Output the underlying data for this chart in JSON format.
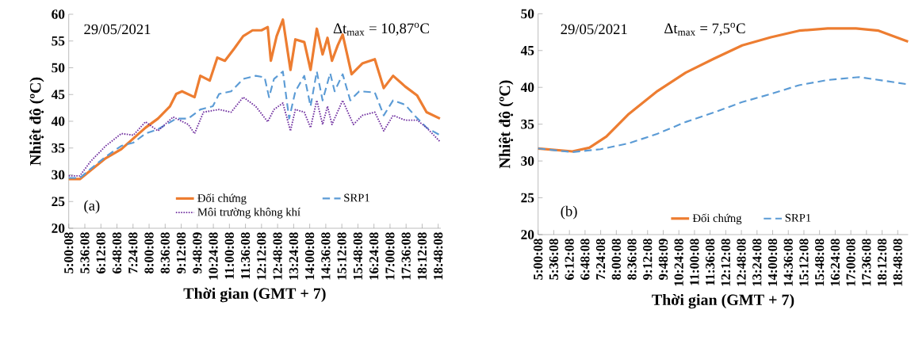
{
  "chart_data": [
    {
      "type": "line",
      "xlabel": "Thời gian (GMT + 7)",
      "ylabel": "Nhiệt độ (ºC)",
      "annotations": [
        "29/05/2021",
        "Δt$_{max}$ = 10,87$^{o}$C",
        "(a)"
      ],
      "xlim": [
        "2021-05-29T05:00",
        "2021-05-29T18:54"
      ],
      "ylim": [
        20,
        60
      ],
      "yticks": [
        20,
        25,
        30,
        35,
        40,
        45,
        50,
        55,
        60
      ],
      "xticks": [
        {
          "value": "2021-05-29T05:00:08",
          "label": "5:00:08"
        },
        {
          "value": "2021-05-29T05:36:08",
          "label": "5:36:08"
        },
        {
          "value": "2021-05-29T06:12:08",
          "label": "6:12:08"
        },
        {
          "value": "2021-05-29T06:48:08",
          "label": "6:48:08"
        },
        {
          "value": "2021-05-29T07:24:08",
          "label": "7:24:08"
        },
        {
          "value": "2021-05-29T08:00:08",
          "label": "8:00:08"
        },
        {
          "value": "2021-05-29T08:36:08",
          "label": "8:36:08"
        },
        {
          "value": "2021-05-29T09:12:08",
          "label": "9:12:08"
        },
        {
          "value": "2021-05-29T09:48:09",
          "label": "9:48:09"
        },
        {
          "value": "2021-05-29T10:24:08",
          "label": "10:24:08"
        },
        {
          "value": "2021-05-29T11:00:08",
          "label": "11:00:08"
        },
        {
          "value": "2021-05-29T11:36:08",
          "label": "11:36:08"
        },
        {
          "value": "2021-05-29T12:12:08",
          "label": "12:12:08"
        },
        {
          "value": "2021-05-29T12:48:08",
          "label": "12:48:08"
        },
        {
          "value": "2021-05-29T13:24:08",
          "label": "13:24:08"
        },
        {
          "value": "2021-05-29T14:00:08",
          "label": "14:00:08"
        },
        {
          "value": "2021-05-29T14:36:08",
          "label": "14:36:08"
        },
        {
          "value": "2021-05-29T15:12:08",
          "label": "15:12:08"
        },
        {
          "value": "2021-05-29T15:48:08",
          "label": "15:48:08"
        },
        {
          "value": "2021-05-29T16:24:08",
          "label": "16:24:08"
        },
        {
          "value": "2021-05-29T17:00:08",
          "label": "17:00:08"
        },
        {
          "value": "2021-05-29T17:36:08",
          "label": "17:36:08"
        },
        {
          "value": "2021-05-29T18:12:08",
          "label": "18:12:08"
        },
        {
          "value": "2021-05-29T18:48:08",
          "label": "18:48:08"
        }
      ],
      "legend": "bottom",
      "grid": false,
      "marker": "none",
      "series": [
        {
          "name": "Đối chứng",
          "color": "#ed7d31",
          "line_style": "solid",
          "x": [
            "2021-05-29T05:00",
            "2021-05-29T05:25",
            "2021-05-29T05:49",
            "2021-05-29T06:23",
            "2021-05-29T06:58",
            "2021-05-29T07:25",
            "2021-05-29T07:52",
            "2021-05-29T08:20",
            "2021-05-29T08:47",
            "2021-05-29T09:01",
            "2021-05-29T09:14",
            "2021-05-29T09:42",
            "2021-05-29T09:55",
            "2021-05-29T10:16",
            "2021-05-29T10:33",
            "2021-05-29T10:50",
            "2021-05-29T11:11",
            "2021-05-29T11:31",
            "2021-05-29T11:52",
            "2021-05-29T12:12",
            "2021-05-29T12:26",
            "2021-05-29T12:33",
            "2021-05-29T12:46",
            "2021-05-29T13:00",
            "2021-05-29T13:17",
            "2021-05-29T13:28",
            "2021-05-29T13:48",
            "2021-05-29T14:02",
            "2021-05-29T14:16",
            "2021-05-29T14:29",
            "2021-05-29T14:40",
            "2021-05-29T14:50",
            "2021-05-29T15:03",
            "2021-05-29T15:14",
            "2021-05-29T15:34",
            "2021-05-29T15:58",
            "2021-05-29T16:26",
            "2021-05-29T16:46",
            "2021-05-29T17:07",
            "2021-05-29T17:34",
            "2021-05-29T18:01",
            "2021-05-29T18:22",
            "2021-05-29T18:52"
          ],
          "values": [
            29.2,
            29.2,
            30.8,
            33.1,
            34.8,
            36.8,
            38.8,
            40.5,
            42.8,
            45.1,
            45.6,
            44.5,
            48.5,
            47.6,
            51.9,
            51.3,
            53.6,
            55.9,
            57.0,
            57.0,
            57.6,
            51.3,
            55.9,
            59.0,
            49.6,
            55.3,
            54.8,
            49.6,
            57.3,
            52.5,
            55.6,
            51.3,
            54.2,
            56.2,
            48.8,
            50.8,
            51.6,
            46.2,
            48.5,
            46.5,
            44.8,
            41.7,
            40.5
          ]
        },
        {
          "name": "SRP1",
          "color": "#5b9bd5",
          "line_style": "dashed",
          "x": [
            "2021-05-29T05:00",
            "2021-05-29T05:25",
            "2021-05-29T05:49",
            "2021-05-29T06:23",
            "2021-05-29T06:58",
            "2021-05-29T07:25",
            "2021-05-29T07:52",
            "2021-05-29T08:20",
            "2021-05-29T09:01",
            "2021-05-29T09:28",
            "2021-05-29T09:55",
            "2021-05-29T10:23",
            "2021-05-29T10:37",
            "2021-05-29T11:04",
            "2021-05-29T11:31",
            "2021-05-29T11:59",
            "2021-05-29T12:19",
            "2021-05-29T12:29",
            "2021-05-29T12:40",
            "2021-05-29T13:00",
            "2021-05-29T13:14",
            "2021-05-29T13:28",
            "2021-05-29T13:48",
            "2021-05-29T14:02",
            "2021-05-29T14:16",
            "2021-05-29T14:29",
            "2021-05-29T14:46",
            "2021-05-29T14:56",
            "2021-05-29T15:14",
            "2021-05-29T15:31",
            "2021-05-29T15:51",
            "2021-05-29T16:26",
            "2021-05-29T16:46",
            "2021-05-29T17:07",
            "2021-05-29T17:34",
            "2021-05-29T17:55",
            "2021-05-29T18:22",
            "2021-05-29T18:52"
          ],
          "values": [
            29.4,
            29.4,
            31.1,
            33.4,
            35.4,
            36.0,
            37.7,
            38.5,
            40.5,
            40.5,
            42.2,
            42.8,
            45.1,
            45.6,
            47.9,
            48.5,
            48.2,
            44.5,
            47.9,
            49.3,
            40.5,
            45.6,
            48.5,
            42.8,
            49.3,
            43.9,
            49.0,
            45.6,
            48.8,
            43.9,
            45.6,
            45.4,
            41.1,
            43.9,
            43.1,
            41.1,
            38.8,
            37.4
          ]
        },
        {
          "name": "Môi trường không khí",
          "color": "#7030a0",
          "line_style": "dotted",
          "x": [
            "2021-05-29T05:00",
            "2021-05-29T05:25",
            "2021-05-29T05:49",
            "2021-05-29T06:23",
            "2021-05-29T06:58",
            "2021-05-29T07:25",
            "2021-05-29T07:52",
            "2021-05-29T08:20",
            "2021-05-29T08:54",
            "2021-05-29T09:28",
            "2021-05-29T09:42",
            "2021-05-29T10:02",
            "2021-05-29T10:37",
            "2021-05-29T11:04",
            "2021-05-29T11:31",
            "2021-05-29T11:59",
            "2021-05-29T12:26",
            "2021-05-29T12:40",
            "2021-05-29T13:00",
            "2021-05-29T13:17",
            "2021-05-29T13:28",
            "2021-05-29T13:48",
            "2021-05-29T14:02",
            "2021-05-29T14:16",
            "2021-05-29T14:29",
            "2021-05-29T14:40",
            "2021-05-29T14:50",
            "2021-05-29T15:14",
            "2021-05-29T15:38",
            "2021-05-29T15:58",
            "2021-05-29T16:26",
            "2021-05-29T16:46",
            "2021-05-29T17:07",
            "2021-05-29T17:34",
            "2021-05-29T18:01",
            "2021-05-29T18:22",
            "2021-05-29T18:52"
          ],
          "values": [
            29.8,
            29.8,
            32.5,
            35.4,
            37.7,
            37.4,
            39.9,
            38.2,
            40.8,
            39.4,
            37.7,
            41.7,
            42.2,
            41.7,
            44.5,
            42.8,
            39.9,
            42.2,
            43.4,
            38.2,
            42.2,
            41.7,
            38.8,
            43.9,
            39.4,
            42.8,
            39.4,
            43.9,
            39.4,
            41.1,
            41.7,
            38.2,
            41.1,
            40.2,
            40.2,
            38.8,
            36.2
          ]
        }
      ]
    },
    {
      "type": "line",
      "xlabel": "Thời gian (GMT + 7)",
      "ylabel": "Nhiệt độ (ºC)",
      "annotations": [
        "29/05/2021",
        "Δt$_{max}$ = 7,5$^{o}$C",
        "(b)"
      ],
      "xlim": [
        "2021-05-29T05:00",
        "2021-05-29T19:12"
      ],
      "ylim": [
        20,
        50
      ],
      "yticks": [
        20,
        25,
        30,
        35,
        40,
        45,
        50
      ],
      "xticks": [
        {
          "value": "2021-05-29T05:00:08",
          "label": "5:00:08"
        },
        {
          "value": "2021-05-29T05:36:08",
          "label": "5:36:08"
        },
        {
          "value": "2021-05-29T06:12:08",
          "label": "6:12:08"
        },
        {
          "value": "2021-05-29T06:48:08",
          "label": "6:48:08"
        },
        {
          "value": "2021-05-29T07:24:08",
          "label": "7:24:08"
        },
        {
          "value": "2021-05-29T08:00:08",
          "label": "8:00:08"
        },
        {
          "value": "2021-05-29T08:36:08",
          "label": "8:36:08"
        },
        {
          "value": "2021-05-29T09:12:08",
          "label": "9:12:08"
        },
        {
          "value": "2021-05-29T09:48:09",
          "label": "9:48:09"
        },
        {
          "value": "2021-05-29T10:24:08",
          "label": "10:24:08"
        },
        {
          "value": "2021-05-29T11:00:08",
          "label": "11:00:08"
        },
        {
          "value": "2021-05-29T11:36:08",
          "label": "11:36:08"
        },
        {
          "value": "2021-05-29T12:12:08",
          "label": "12:12:08"
        },
        {
          "value": "2021-05-29T12:48:08",
          "label": "12:48:08"
        },
        {
          "value": "2021-05-29T13:24:08",
          "label": "13:24:08"
        },
        {
          "value": "2021-05-29T14:00:08",
          "label": "14:00:08"
        },
        {
          "value": "2021-05-29T14:36:08",
          "label": "14:36:08"
        },
        {
          "value": "2021-05-29T15:12:08",
          "label": "15:12:08"
        },
        {
          "value": "2021-05-29T15:48:08",
          "label": "15:48:08"
        },
        {
          "value": "2021-05-29T16:24:08",
          "label": "16:24:08"
        },
        {
          "value": "2021-05-29T17:00:08",
          "label": "17:00:08"
        },
        {
          "value": "2021-05-29T17:36:08",
          "label": "17:36:08"
        },
        {
          "value": "2021-05-29T18:12:08",
          "label": "18:12:08"
        },
        {
          "value": "2021-05-29T18:48:08",
          "label": "18:48:08"
        }
      ],
      "legend": "bottom",
      "grid": false,
      "marker": "none",
      "series": [
        {
          "name": "Đối chứng",
          "color": "#ed7d31",
          "line_style": "solid",
          "x": [
            "2021-05-29T05:00",
            "2021-05-29T06:19",
            "2021-05-29T06:58",
            "2021-05-29T07:37",
            "2021-05-29T08:29",
            "2021-05-29T09:35",
            "2021-05-29T10:40",
            "2021-05-29T11:45",
            "2021-05-29T12:50",
            "2021-05-29T13:56",
            "2021-05-29T15:01",
            "2021-05-29T16:07",
            "2021-05-29T17:12",
            "2021-05-29T18:04",
            "2021-05-29T19:12"
          ],
          "values": [
            31.7,
            31.3,
            31.8,
            33.3,
            36.4,
            39.5,
            42.0,
            43.9,
            45.7,
            46.8,
            47.7,
            48.0,
            48.0,
            47.7,
            46.2
          ]
        },
        {
          "name": "SRP1",
          "color": "#5b9bd5",
          "line_style": "dashed",
          "x": [
            "2021-05-29T05:00",
            "2021-05-29T06:19",
            "2021-05-29T07:24",
            "2021-05-29T08:29",
            "2021-05-29T09:35",
            "2021-05-29T10:40",
            "2021-05-29T11:45",
            "2021-05-29T12:50",
            "2021-05-29T13:56",
            "2021-05-29T15:01",
            "2021-05-29T16:07",
            "2021-05-29T17:19",
            "2021-05-29T18:17",
            "2021-05-29T19:12"
          ],
          "values": [
            31.7,
            31.2,
            31.6,
            32.4,
            33.7,
            35.3,
            36.6,
            38.0,
            39.1,
            40.3,
            41.0,
            41.4,
            40.9,
            40.4
          ]
        }
      ]
    }
  ]
}
